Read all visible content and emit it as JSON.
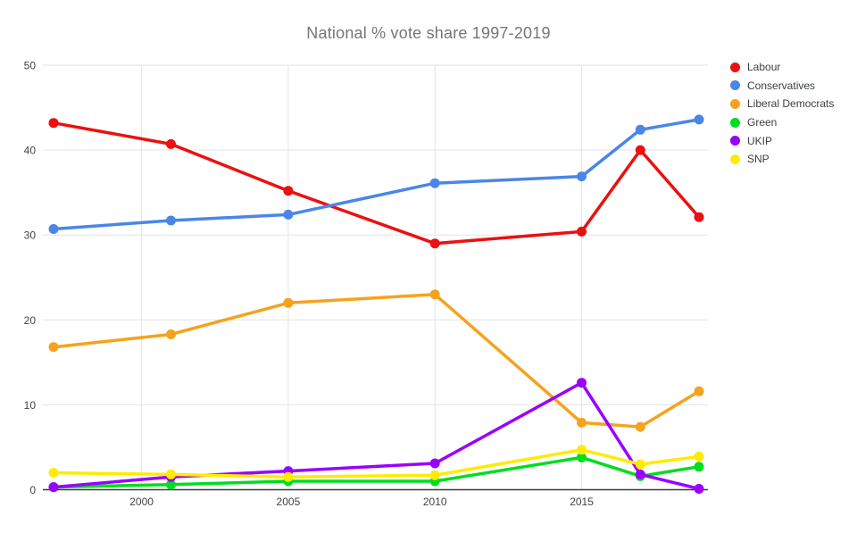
{
  "chart_data": {
    "type": "line",
    "title": "National % vote share 1997-2019",
    "x": [
      1997,
      2001,
      2005,
      2010,
      2015,
      2017,
      2019
    ],
    "series": [
      {
        "name": "Labour",
        "color": "#ec1010",
        "values": [
          43.2,
          40.7,
          35.2,
          29.0,
          30.4,
          40.0,
          32.1
        ]
      },
      {
        "name": "Conservatives",
        "color": "#4a86e8",
        "values": [
          30.7,
          31.7,
          32.4,
          36.1,
          36.9,
          42.4,
          43.6
        ]
      },
      {
        "name": "Liberal Democrats",
        "color": "#f5a31c",
        "values": [
          16.8,
          18.3,
          22.0,
          23.0,
          7.9,
          7.4,
          11.6
        ]
      },
      {
        "name": "Green",
        "color": "#00dd20",
        "values": [
          0.3,
          0.6,
          1.0,
          1.0,
          3.8,
          1.6,
          2.7
        ]
      },
      {
        "name": "UKIP",
        "color": "#9900ff",
        "values": [
          0.3,
          1.5,
          2.2,
          3.1,
          12.6,
          1.8,
          0.1
        ]
      },
      {
        "name": "SNP",
        "color": "#ffeb00",
        "values": [
          2.0,
          1.8,
          1.5,
          1.7,
          4.7,
          3.0,
          3.9
        ]
      }
    ],
    "xlim": [
      1997,
      2019
    ],
    "ylim": [
      0,
      50
    ],
    "x_ticks": [
      2000,
      2005,
      2010,
      2015
    ],
    "y_ticks": [
      0,
      10,
      20,
      30,
      40,
      50
    ],
    "grid": true,
    "legend_position": "right",
    "colors": {
      "title_text": "#757575",
      "axis_text": "#424242",
      "gridline": "#e3e3e3",
      "baseline": "#3b3b3b",
      "background": "#ffffff"
    }
  }
}
